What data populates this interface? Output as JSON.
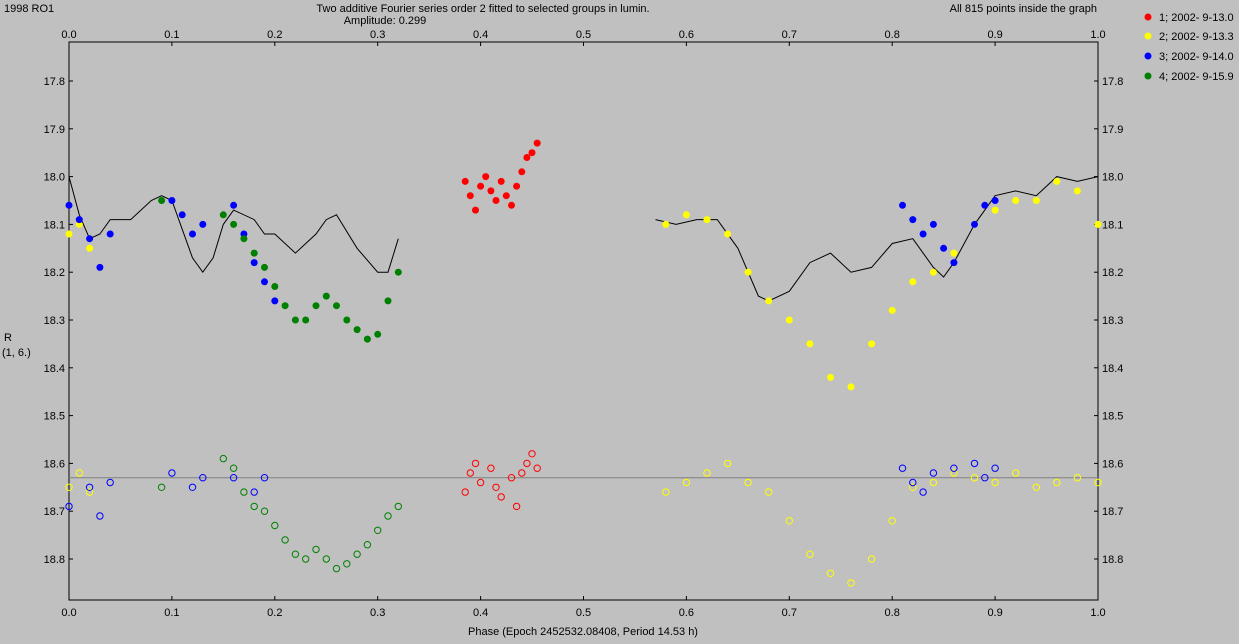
{
  "header": {
    "object_name": "1998 RO1",
    "title_line1": "Two additive Fourier series order 2 fitted to selected groups in lumin.",
    "title_line2": "Amplitude: 0.299",
    "points_note": "All 815 points inside the graph"
  },
  "axis": {
    "ylabel_line1": "R",
    "ylabel_line2": "(1, 6.)",
    "xlabel": "Phase (Epoch 2452532.08408, Period 14.53 h)"
  },
  "legend": [
    {
      "label": "1; 2002- 9-13.0",
      "color": "#ff0000"
    },
    {
      "label": "2; 2002- 9-13.3",
      "color": "#ffff00"
    },
    {
      "label": "3; 2002- 9-14.0",
      "color": "#0000ff"
    },
    {
      "label": "4; 2002- 9-15.9",
      "color": "#008000"
    }
  ],
  "chart_data": {
    "type": "scatter",
    "title": "Two additive Fourier series order 2 fitted to selected groups in lumin.",
    "subtitle": "Amplitude: 0.299",
    "xlabel": "Phase (Epoch 2452532.08408, Period 14.53 h)",
    "ylabel": "R (1, 6.)",
    "xlim": [
      0.0,
      1.0
    ],
    "ylim_inverted": [
      17.72,
      18.9
    ],
    "x_ticks": [
      "0.0",
      "0.1",
      "0.2",
      "0.3",
      "0.4",
      "0.5",
      "0.6",
      "0.7",
      "0.8",
      "0.9",
      "1.0"
    ],
    "y_ticks": [
      "17.8",
      "17.9",
      "18.0",
      "18.1",
      "18.2",
      "18.3",
      "18.4",
      "18.5",
      "18.6",
      "18.7",
      "18.8"
    ],
    "residual_reference_level": 18.63,
    "series": [
      {
        "name": "1; 2002- 9-13.0",
        "color": "#ff0000",
        "points": [
          [
            0.385,
            18.01
          ],
          [
            0.39,
            18.04
          ],
          [
            0.395,
            18.07
          ],
          [
            0.4,
            18.02
          ],
          [
            0.405,
            18.0
          ],
          [
            0.41,
            18.03
          ],
          [
            0.415,
            18.05
          ],
          [
            0.42,
            18.01
          ],
          [
            0.425,
            18.04
          ],
          [
            0.43,
            18.06
          ],
          [
            0.435,
            18.02
          ],
          [
            0.44,
            17.99
          ],
          [
            0.445,
            17.96
          ],
          [
            0.45,
            17.95
          ],
          [
            0.455,
            17.93
          ]
        ],
        "residuals": [
          [
            0.385,
            18.66
          ],
          [
            0.39,
            18.62
          ],
          [
            0.395,
            18.6
          ],
          [
            0.4,
            18.64
          ],
          [
            0.41,
            18.61
          ],
          [
            0.415,
            18.65
          ],
          [
            0.42,
            18.67
          ],
          [
            0.43,
            18.63
          ],
          [
            0.435,
            18.69
          ],
          [
            0.44,
            18.62
          ],
          [
            0.445,
            18.6
          ],
          [
            0.45,
            18.58
          ],
          [
            0.455,
            18.61
          ]
        ]
      },
      {
        "name": "2; 2002- 9-13.3",
        "color": "#ffff00",
        "points": [
          [
            0.0,
            18.12
          ],
          [
            0.01,
            18.1
          ],
          [
            0.02,
            18.15
          ],
          [
            0.58,
            18.1
          ],
          [
            0.6,
            18.08
          ],
          [
            0.62,
            18.09
          ],
          [
            0.64,
            18.12
          ],
          [
            0.66,
            18.2
          ],
          [
            0.68,
            18.26
          ],
          [
            0.7,
            18.3
          ],
          [
            0.72,
            18.35
          ],
          [
            0.74,
            18.42
          ],
          [
            0.76,
            18.44
          ],
          [
            0.78,
            18.35
          ],
          [
            0.8,
            18.28
          ],
          [
            0.82,
            18.22
          ],
          [
            0.84,
            18.2
          ],
          [
            0.86,
            18.16
          ],
          [
            0.88,
            18.1
          ],
          [
            0.9,
            18.07
          ],
          [
            0.92,
            18.05
          ],
          [
            0.94,
            18.05
          ],
          [
            0.96,
            18.01
          ],
          [
            0.98,
            18.03
          ],
          [
            1.0,
            18.1
          ]
        ],
        "residuals": [
          [
            0.0,
            18.65
          ],
          [
            0.01,
            18.62
          ],
          [
            0.02,
            18.66
          ],
          [
            0.58,
            18.66
          ],
          [
            0.6,
            18.64
          ],
          [
            0.62,
            18.62
          ],
          [
            0.64,
            18.6
          ],
          [
            0.66,
            18.64
          ],
          [
            0.68,
            18.66
          ],
          [
            0.7,
            18.72
          ],
          [
            0.72,
            18.79
          ],
          [
            0.74,
            18.83
          ],
          [
            0.76,
            18.85
          ],
          [
            0.78,
            18.8
          ],
          [
            0.8,
            18.72
          ],
          [
            0.82,
            18.65
          ],
          [
            0.84,
            18.64
          ],
          [
            0.86,
            18.62
          ],
          [
            0.88,
            18.63
          ],
          [
            0.9,
            18.64
          ],
          [
            0.92,
            18.62
          ],
          [
            0.94,
            18.65
          ],
          [
            0.96,
            18.64
          ],
          [
            0.98,
            18.63
          ],
          [
            1.0,
            18.64
          ]
        ]
      },
      {
        "name": "3; 2002- 9-14.0",
        "color": "#0000ff",
        "points": [
          [
            0.0,
            18.06
          ],
          [
            0.01,
            18.09
          ],
          [
            0.02,
            18.13
          ],
          [
            0.03,
            18.19
          ],
          [
            0.04,
            18.12
          ],
          [
            0.1,
            18.05
          ],
          [
            0.11,
            18.08
          ],
          [
            0.12,
            18.12
          ],
          [
            0.13,
            18.1
          ],
          [
            0.16,
            18.06
          ],
          [
            0.17,
            18.12
          ],
          [
            0.18,
            18.18
          ],
          [
            0.19,
            18.22
          ],
          [
            0.2,
            18.26
          ],
          [
            0.81,
            18.06
          ],
          [
            0.82,
            18.09
          ],
          [
            0.83,
            18.12
          ],
          [
            0.84,
            18.1
          ],
          [
            0.85,
            18.15
          ],
          [
            0.86,
            18.18
          ],
          [
            0.88,
            18.1
          ],
          [
            0.89,
            18.06
          ],
          [
            0.9,
            18.05
          ]
        ],
        "residuals": [
          [
            0.0,
            18.69
          ],
          [
            0.02,
            18.65
          ],
          [
            0.03,
            18.71
          ],
          [
            0.04,
            18.64
          ],
          [
            0.1,
            18.62
          ],
          [
            0.12,
            18.65
          ],
          [
            0.13,
            18.63
          ],
          [
            0.16,
            18.63
          ],
          [
            0.18,
            18.66
          ],
          [
            0.19,
            18.63
          ],
          [
            0.81,
            18.61
          ],
          [
            0.82,
            18.64
          ],
          [
            0.83,
            18.66
          ],
          [
            0.84,
            18.62
          ],
          [
            0.86,
            18.61
          ],
          [
            0.88,
            18.6
          ],
          [
            0.89,
            18.63
          ],
          [
            0.9,
            18.61
          ]
        ]
      },
      {
        "name": "4; 2002- 9-15.9",
        "color": "#008000",
        "points": [
          [
            0.09,
            18.05
          ],
          [
            0.15,
            18.08
          ],
          [
            0.16,
            18.1
          ],
          [
            0.17,
            18.13
          ],
          [
            0.18,
            18.16
          ],
          [
            0.19,
            18.19
          ],
          [
            0.2,
            18.23
          ],
          [
            0.21,
            18.27
          ],
          [
            0.22,
            18.3
          ],
          [
            0.23,
            18.3
          ],
          [
            0.24,
            18.27
          ],
          [
            0.25,
            18.25
          ],
          [
            0.26,
            18.27
          ],
          [
            0.27,
            18.3
          ],
          [
            0.28,
            18.32
          ],
          [
            0.29,
            18.34
          ],
          [
            0.3,
            18.33
          ],
          [
            0.31,
            18.26
          ],
          [
            0.32,
            18.2
          ]
        ],
        "residuals": [
          [
            0.09,
            18.65
          ],
          [
            0.15,
            18.59
          ],
          [
            0.16,
            18.61
          ],
          [
            0.17,
            18.66
          ],
          [
            0.18,
            18.69
          ],
          [
            0.19,
            18.7
          ],
          [
            0.2,
            18.73
          ],
          [
            0.21,
            18.76
          ],
          [
            0.22,
            18.79
          ],
          [
            0.23,
            18.8
          ],
          [
            0.24,
            18.78
          ],
          [
            0.25,
            18.8
          ],
          [
            0.26,
            18.82
          ],
          [
            0.27,
            18.81
          ],
          [
            0.28,
            18.79
          ],
          [
            0.29,
            18.77
          ],
          [
            0.3,
            18.74
          ],
          [
            0.31,
            18.71
          ],
          [
            0.32,
            18.69
          ]
        ]
      }
    ],
    "fit_curves": [
      {
        "points": [
          [
            0.0,
            18.0
          ],
          [
            0.01,
            18.08
          ],
          [
            0.02,
            18.13
          ],
          [
            0.03,
            18.12
          ],
          [
            0.04,
            18.09
          ],
          [
            0.06,
            18.09
          ],
          [
            0.08,
            18.05
          ],
          [
            0.09,
            18.04
          ],
          [
            0.1,
            18.05
          ],
          [
            0.11,
            18.11
          ],
          [
            0.12,
            18.17
          ],
          [
            0.13,
            18.2
          ],
          [
            0.14,
            18.17
          ],
          [
            0.15,
            18.1
          ],
          [
            0.16,
            18.07
          ],
          [
            0.18,
            18.09
          ],
          [
            0.19,
            18.12
          ],
          [
            0.2,
            18.12
          ],
          [
            0.22,
            18.16
          ],
          [
            0.24,
            18.12
          ],
          [
            0.25,
            18.09
          ],
          [
            0.26,
            18.08
          ],
          [
            0.28,
            18.15
          ],
          [
            0.3,
            18.2
          ],
          [
            0.31,
            18.2
          ],
          [
            0.32,
            18.13
          ]
        ]
      },
      {
        "points": [
          [
            0.57,
            18.09
          ],
          [
            0.59,
            18.1
          ],
          [
            0.61,
            18.09
          ],
          [
            0.63,
            18.09
          ],
          [
            0.65,
            18.15
          ],
          [
            0.67,
            18.25
          ],
          [
            0.68,
            18.26
          ],
          [
            0.7,
            18.24
          ],
          [
            0.72,
            18.18
          ],
          [
            0.74,
            18.16
          ],
          [
            0.76,
            18.2
          ],
          [
            0.78,
            18.19
          ],
          [
            0.8,
            18.14
          ],
          [
            0.82,
            18.13
          ],
          [
            0.84,
            18.19
          ],
          [
            0.85,
            18.21
          ],
          [
            0.86,
            18.18
          ],
          [
            0.88,
            18.1
          ],
          [
            0.9,
            18.04
          ],
          [
            0.92,
            18.03
          ],
          [
            0.94,
            18.04
          ],
          [
            0.96,
            18.0
          ],
          [
            0.98,
            18.01
          ],
          [
            1.0,
            18.0
          ]
        ]
      }
    ]
  }
}
